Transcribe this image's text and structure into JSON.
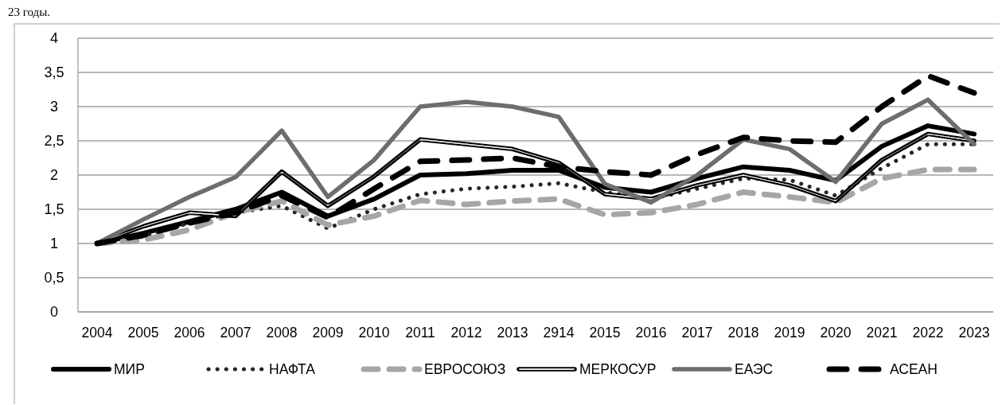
{
  "chart_data": {
    "type": "line",
    "annotations": [
      "23 годы."
    ],
    "categories": [
      "2004",
      "2005",
      "2006",
      "2007",
      "2008",
      "2009",
      "2010",
      "2011",
      "2012",
      "2013",
      "2914",
      "2015",
      "2016",
      "2017",
      "2018",
      "2019",
      "2020",
      "2021",
      "2022",
      "2023"
    ],
    "series": [
      {
        "name": "МИР",
        "color": "#000000",
        "line_style": "solid",
        "values": [
          1,
          1.15,
          1.32,
          1.5,
          1.75,
          1.4,
          1.65,
          2.0,
          2.02,
          2.07,
          2.07,
          1.82,
          1.75,
          1.95,
          2.12,
          2.07,
          1.92,
          2.42,
          2.72,
          2.6
        ]
      },
      {
        "name": "НАФТА",
        "color": "#262626",
        "line_style": "dotted",
        "values": [
          1,
          1.1,
          1.3,
          1.45,
          1.55,
          1.22,
          1.5,
          1.72,
          1.8,
          1.83,
          1.88,
          1.75,
          1.65,
          1.8,
          1.95,
          1.93,
          1.7,
          2.1,
          2.45,
          2.45
        ]
      },
      {
        "name": "ЕВРОСОЮЗ",
        "color": "#a6a6a6",
        "line_style": "dashed",
        "values": [
          1,
          1.05,
          1.2,
          1.45,
          1.62,
          1.27,
          1.4,
          1.63,
          1.57,
          1.62,
          1.65,
          1.42,
          1.45,
          1.57,
          1.75,
          1.68,
          1.6,
          1.95,
          2.08,
          2.08
        ]
      },
      {
        "name": "МЕРКОСУР",
        "color": "#000000",
        "line_style": "solid",
        "values": [
          1,
          1.25,
          1.45,
          1.4,
          2.05,
          1.55,
          1.98,
          2.52,
          2.45,
          2.38,
          2.18,
          1.72,
          1.65,
          1.85,
          2.0,
          1.85,
          1.62,
          2.22,
          2.6,
          2.5
        ]
      },
      {
        "name": "ЕАЭС",
        "color": "#6d6d6d",
        "line_style": "solid",
        "values": [
          1,
          1.35,
          1.68,
          1.97,
          2.65,
          1.68,
          2.22,
          3.0,
          3.07,
          3.0,
          2.85,
          1.87,
          1.6,
          2.0,
          2.52,
          2.38,
          1.9,
          2.75,
          3.1,
          2.45
        ]
      },
      {
        "name": "АСЕАН",
        "color": "#000000",
        "line_style": "dashed",
        "values": [
          1,
          1.12,
          1.3,
          1.45,
          1.7,
          1.38,
          1.8,
          2.2,
          2.22,
          2.25,
          2.12,
          2.05,
          2.0,
          2.3,
          2.55,
          2.5,
          2.48,
          3.0,
          3.45,
          3.2
        ]
      }
    ],
    "ylim": [
      0,
      4
    ],
    "yticks": [
      0,
      {
        "value": 0.5,
        "label": "0,5"
      },
      1,
      {
        "value": 1.5,
        "label": "1,5"
      },
      2,
      {
        "value": 2.5,
        "label": "2,5"
      },
      3,
      {
        "value": 3.5,
        "label": "3,5"
      },
      4
    ],
    "grid": "y",
    "legend": "bottom"
  }
}
